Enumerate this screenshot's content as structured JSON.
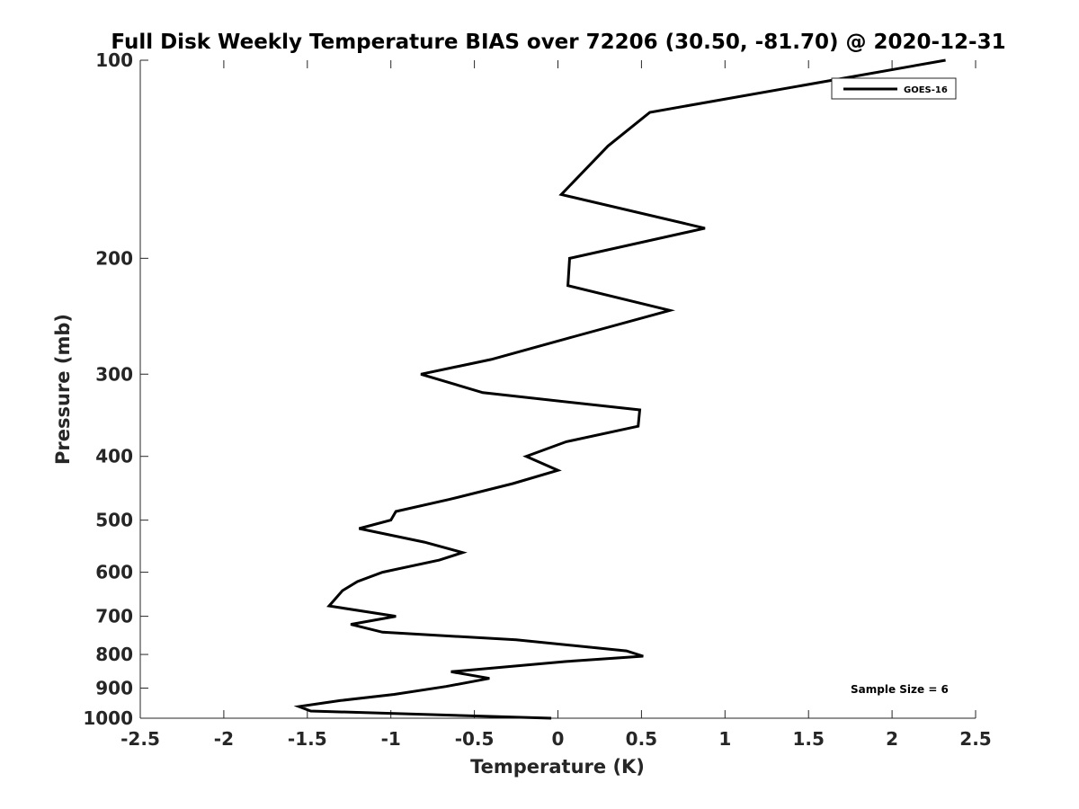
{
  "chart_data": {
    "type": "line",
    "title": "Full Disk Weekly Temperature BIAS over 72206 (30.50, -81.70) @ 2020-12-31",
    "xlabel": "Temperature (K)",
    "ylabel": "Pressure (mb)",
    "xlim": [
      -2.5,
      2.5
    ],
    "ylim": [
      100,
      1000
    ],
    "yscale": "log",
    "yreversed": true,
    "x_ticks": [
      "-2.5",
      "-2",
      "-1.5",
      "-1",
      "-0.5",
      "0",
      "0.5",
      "1",
      "1.5",
      "2",
      "2.5"
    ],
    "y_ticks": [
      "100",
      "200",
      "300",
      "400",
      "500",
      "600",
      "700",
      "800",
      "900",
      "1000"
    ],
    "grid": false,
    "legend": {
      "position": "top-right",
      "entries": [
        "GOES-16"
      ]
    },
    "annotation": "Sample Size = 6",
    "series": [
      {
        "name": "GOES-16",
        "color": "#000000",
        "points": [
          {
            "x": 2.32,
            "y": 100
          },
          {
            "x": 0.55,
            "y": 120
          },
          {
            "x": 0.3,
            "y": 135
          },
          {
            "x": 0.02,
            "y": 160
          },
          {
            "x": 0.88,
            "y": 180
          },
          {
            "x": 0.07,
            "y": 200
          },
          {
            "x": 0.06,
            "y": 220
          },
          {
            "x": 0.67,
            "y": 240
          },
          {
            "x": 0.05,
            "y": 265
          },
          {
            "x": -0.4,
            "y": 285
          },
          {
            "x": -0.82,
            "y": 300
          },
          {
            "x": -0.45,
            "y": 320
          },
          {
            "x": 0.49,
            "y": 340
          },
          {
            "x": 0.48,
            "y": 360
          },
          {
            "x": 0.05,
            "y": 380
          },
          {
            "x": -0.19,
            "y": 400
          },
          {
            "x": 0.0,
            "y": 420
          },
          {
            "x": -0.27,
            "y": 440
          },
          {
            "x": -0.65,
            "y": 465
          },
          {
            "x": -0.97,
            "y": 485
          },
          {
            "x": -1.0,
            "y": 500
          },
          {
            "x": -1.19,
            "y": 515
          },
          {
            "x": -0.8,
            "y": 540
          },
          {
            "x": -0.57,
            "y": 560
          },
          {
            "x": -0.71,
            "y": 575
          },
          {
            "x": -1.05,
            "y": 600
          },
          {
            "x": -1.2,
            "y": 620
          },
          {
            "x": -1.29,
            "y": 640
          },
          {
            "x": -1.37,
            "y": 675
          },
          {
            "x": -0.97,
            "y": 700
          },
          {
            "x": -1.24,
            "y": 720
          },
          {
            "x": -1.05,
            "y": 740
          },
          {
            "x": -0.25,
            "y": 760
          },
          {
            "x": 0.41,
            "y": 790
          },
          {
            "x": 0.51,
            "y": 805
          },
          {
            "x": 0.05,
            "y": 820
          },
          {
            "x": -0.64,
            "y": 850
          },
          {
            "x": -0.41,
            "y": 870
          },
          {
            "x": -0.67,
            "y": 895
          },
          {
            "x": -0.98,
            "y": 920
          },
          {
            "x": -1.3,
            "y": 940
          },
          {
            "x": -1.55,
            "y": 960
          },
          {
            "x": -1.48,
            "y": 975
          },
          {
            "x": -0.04,
            "y": 1000
          }
        ]
      }
    ]
  }
}
